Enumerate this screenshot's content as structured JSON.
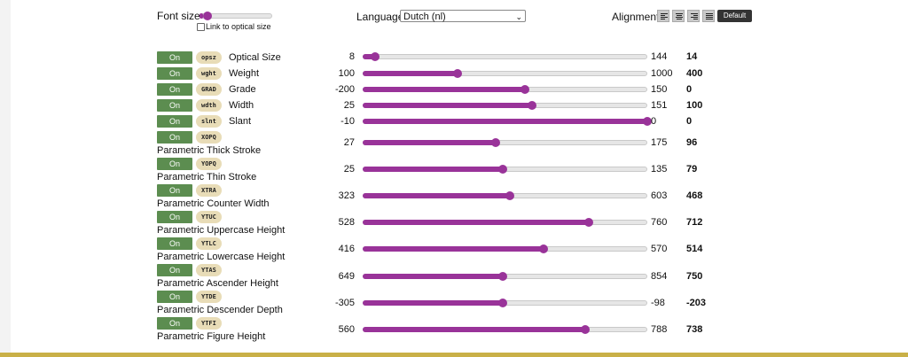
{
  "font_size": {
    "label": "Font size",
    "slider_level": 0.05,
    "link_label": "Link to optical size",
    "link_checked": false
  },
  "language": {
    "label": "Language",
    "selected": "Dutch (nl)"
  },
  "alignment": {
    "label": "Alignment",
    "options": [
      "align-left",
      "align-center",
      "align-right",
      "align-justify"
    ],
    "default_label": "Default"
  },
  "colors": {
    "accent": "#993399",
    "on_button": "#5c8d50",
    "tag": "#e8dcb7",
    "bottom_bar": "#c9b047"
  },
  "axes": [
    {
      "on": "On",
      "tag": "opsz",
      "name": "Optical Size",
      "min": "8",
      "max": "144",
      "value": "14",
      "level": 0.044
    },
    {
      "on": "On",
      "tag": "wght",
      "name": "Weight",
      "min": "100",
      "max": "1000",
      "value": "400",
      "level": 0.333
    },
    {
      "on": "On",
      "tag": "GRAD",
      "name": "Grade",
      "min": "-200",
      "max": "150",
      "value": "0",
      "level": 0.571
    },
    {
      "on": "On",
      "tag": "wdth",
      "name": "Width",
      "min": "25",
      "max": "151",
      "value": "100",
      "level": 0.595
    },
    {
      "on": "On",
      "tag": "slnt",
      "name": "Slant",
      "min": "-10",
      "max": "0",
      "value": "0",
      "level": 1.0
    },
    {
      "on": "On",
      "tag": "XOPQ",
      "name": "Parametric Thick Stroke",
      "min": "27",
      "max": "175",
      "value": "96",
      "level": 0.466
    },
    {
      "on": "On",
      "tag": "YOPQ",
      "name": "Parametric Thin Stroke",
      "min": "25",
      "max": "135",
      "value": "79",
      "level": 0.491
    },
    {
      "on": "On",
      "tag": "XTRA",
      "name": "Parametric Counter Width",
      "min": "323",
      "max": "603",
      "value": "468",
      "level": 0.518
    },
    {
      "on": "On",
      "tag": "YTUC",
      "name": "Parametric Uppercase Height",
      "min": "528",
      "max": "760",
      "value": "712",
      "level": 0.793
    },
    {
      "on": "On",
      "tag": "YTLC",
      "name": "Parametric Lowercase Height",
      "min": "416",
      "max": "570",
      "value": "514",
      "level": 0.636
    },
    {
      "on": "On",
      "tag": "YTAS",
      "name": "Parametric Ascender Height",
      "min": "649",
      "max": "854",
      "value": "750",
      "level": 0.493
    },
    {
      "on": "On",
      "tag": "YTDE",
      "name": "Parametric Descender Depth",
      "min": "-305",
      "max": "-98",
      "value": "-203",
      "level": 0.493
    },
    {
      "on": "On",
      "tag": "YTFI",
      "name": "Parametric Figure Height",
      "min": "560",
      "max": "788",
      "value": "738",
      "level": 0.781
    }
  ]
}
